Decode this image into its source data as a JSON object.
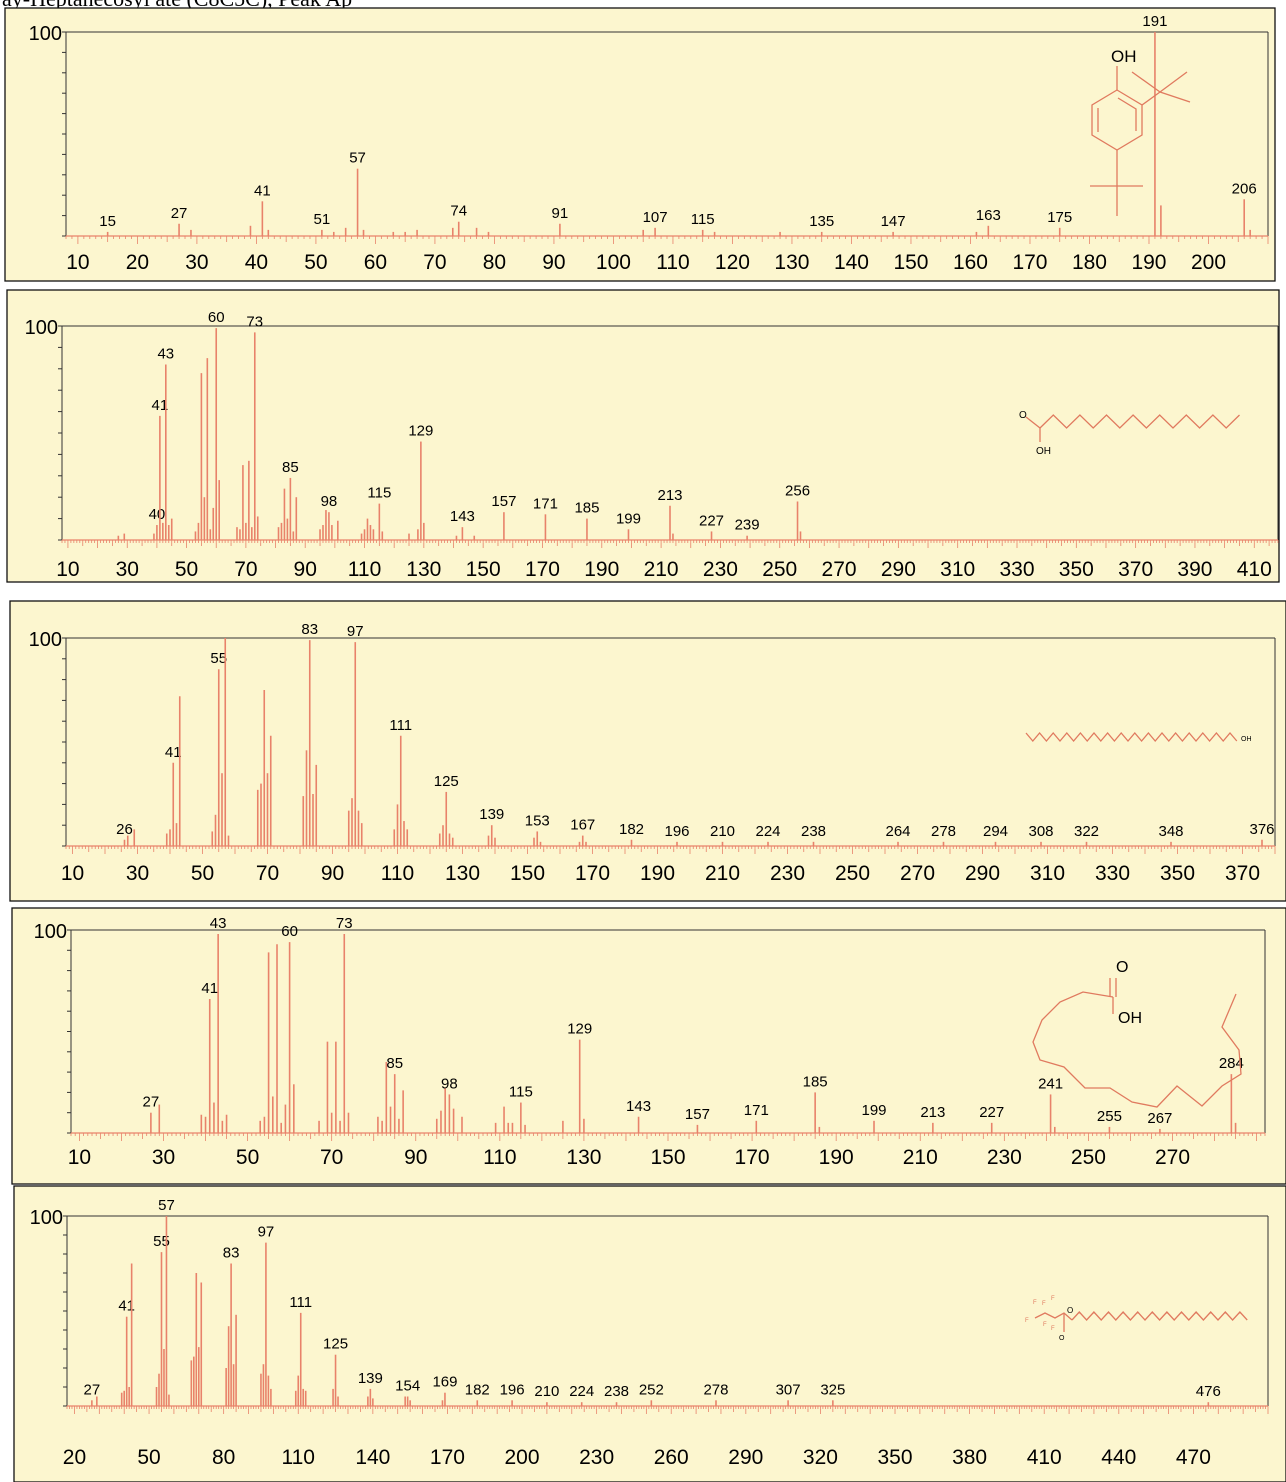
{
  "header": {
    "title": "ay-Heptanecosyl ate (C8C5C), Peak Ap"
  },
  "style": {
    "panel_bg": "#fcf6cf",
    "stick_color": "#e8826a",
    "axis_color": "#333333",
    "structure_color": "#e07a5f"
  },
  "chart_data": [
    {
      "type": "bar",
      "structure": "2,4-di-tert-butylphenol",
      "ylim": [
        0,
        100
      ],
      "y_tick_label": "100",
      "xlim": [
        8,
        210
      ],
      "xtick_labels": [
        10,
        20,
        30,
        40,
        50,
        60,
        70,
        80,
        90,
        100,
        110,
        120,
        130,
        140,
        150,
        160,
        170,
        180,
        190,
        200
      ],
      "structure_label": "OH",
      "peaks": [
        [
          15,
          2,
          "15"
        ],
        [
          27,
          6,
          "27"
        ],
        [
          29,
          3
        ],
        [
          39,
          5
        ],
        [
          41,
          17,
          "41"
        ],
        [
          42,
          3
        ],
        [
          51,
          3,
          "51"
        ],
        [
          53,
          2
        ],
        [
          55,
          4
        ],
        [
          57,
          33,
          "57"
        ],
        [
          58,
          3
        ],
        [
          63,
          2
        ],
        [
          65,
          2
        ],
        [
          67,
          3
        ],
        [
          73,
          4
        ],
        [
          74,
          7,
          "74"
        ],
        [
          77,
          4
        ],
        [
          79,
          2
        ],
        [
          91,
          6,
          "91"
        ],
        [
          105,
          3
        ],
        [
          107,
          4,
          "107"
        ],
        [
          115,
          3,
          "115"
        ],
        [
          117,
          2
        ],
        [
          128,
          2
        ],
        [
          135,
          2,
          "135"
        ],
        [
          147,
          2,
          "147"
        ],
        [
          161,
          2
        ],
        [
          163,
          5,
          "163"
        ],
        [
          175,
          4,
          "175"
        ],
        [
          191,
          100,
          "191"
        ],
        [
          192,
          15
        ],
        [
          206,
          18,
          "206"
        ],
        [
          207,
          3
        ]
      ]
    },
    {
      "type": "bar",
      "structure": "hexadecanoic acid",
      "ylim": [
        0,
        100
      ],
      "y_tick_label": "100",
      "xlim": [
        8,
        418
      ],
      "xtick_labels": [
        10,
        30,
        50,
        70,
        90,
        110,
        130,
        150,
        170,
        190,
        210,
        230,
        250,
        270,
        290,
        310,
        330,
        350,
        370,
        390,
        410
      ],
      "structure_label": "OH",
      "structure_label_2": "O",
      "peaks": [
        [
          27,
          2
        ],
        [
          29,
          3
        ],
        [
          39,
          3
        ],
        [
          40,
          7,
          "40"
        ],
        [
          41,
          58,
          "41"
        ],
        [
          42,
          8
        ],
        [
          43,
          82,
          "43"
        ],
        [
          44,
          7
        ],
        [
          45,
          10
        ],
        [
          53,
          4
        ],
        [
          54,
          8
        ],
        [
          55,
          78
        ],
        [
          56,
          20
        ],
        [
          57,
          85
        ],
        [
          58,
          5
        ],
        [
          59,
          15
        ],
        [
          60,
          99,
          "60"
        ],
        [
          61,
          28
        ],
        [
          67,
          6
        ],
        [
          68,
          5
        ],
        [
          69,
          35
        ],
        [
          70,
          8
        ],
        [
          71,
          37
        ],
        [
          72,
          6
        ],
        [
          73,
          97,
          "73"
        ],
        [
          74,
          11
        ],
        [
          81,
          6
        ],
        [
          82,
          8
        ],
        [
          83,
          24
        ],
        [
          84,
          10
        ],
        [
          85,
          29,
          "85"
        ],
        [
          86,
          4
        ],
        [
          87,
          20
        ],
        [
          95,
          5
        ],
        [
          96,
          7
        ],
        [
          97,
          14
        ],
        [
          98,
          13,
          "98"
        ],
        [
          99,
          7
        ],
        [
          101,
          9
        ],
        [
          109,
          3
        ],
        [
          110,
          5
        ],
        [
          111,
          10
        ],
        [
          112,
          7
        ],
        [
          113,
          5
        ],
        [
          115,
          17,
          "115"
        ],
        [
          116,
          4
        ],
        [
          125,
          3
        ],
        [
          128,
          5
        ],
        [
          129,
          46,
          "129"
        ],
        [
          130,
          8
        ],
        [
          141,
          2
        ],
        [
          143,
          6,
          "143"
        ],
        [
          147,
          2
        ],
        [
          157,
          13,
          "157"
        ],
        [
          171,
          12,
          "171"
        ],
        [
          185,
          10,
          "185"
        ],
        [
          199,
          5,
          "199"
        ],
        [
          213,
          16,
          "213"
        ],
        [
          214,
          3
        ],
        [
          227,
          4,
          "227"
        ],
        [
          239,
          2,
          "239"
        ],
        [
          256,
          18,
          "256"
        ],
        [
          257,
          4
        ]
      ]
    },
    {
      "type": "bar",
      "structure": "hexacosanol",
      "ylim": [
        0,
        100
      ],
      "y_tick_label": "100",
      "xlim": [
        8,
        380
      ],
      "xtick_labels": [
        10,
        30,
        50,
        70,
        90,
        110,
        130,
        150,
        170,
        190,
        210,
        230,
        250,
        270,
        290,
        310,
        330,
        350,
        370
      ],
      "structure_label": "OH",
      "peaks": [
        [
          26,
          3,
          "26"
        ],
        [
          27,
          5
        ],
        [
          29,
          8
        ],
        [
          39,
          6
        ],
        [
          40,
          8
        ],
        [
          41,
          40,
          "41"
        ],
        [
          42,
          11
        ],
        [
          43,
          72
        ],
        [
          53,
          7
        ],
        [
          54,
          15
        ],
        [
          55,
          85,
          "55"
        ],
        [
          56,
          35
        ],
        [
          57,
          100
        ],
        [
          58,
          5
        ],
        [
          67,
          27
        ],
        [
          68,
          30
        ],
        [
          69,
          75
        ],
        [
          70,
          35
        ],
        [
          71,
          53
        ],
        [
          81,
          24
        ],
        [
          82,
          46
        ],
        [
          83,
          99,
          "83"
        ],
        [
          84,
          25
        ],
        [
          85,
          39
        ],
        [
          95,
          17
        ],
        [
          96,
          23
        ],
        [
          97,
          98,
          "97"
        ],
        [
          98,
          17
        ],
        [
          99,
          11
        ],
        [
          109,
          8
        ],
        [
          110,
          20
        ],
        [
          111,
          53,
          "111"
        ],
        [
          112,
          12
        ],
        [
          113,
          8
        ],
        [
          123,
          6
        ],
        [
          124,
          10
        ],
        [
          125,
          26,
          "125"
        ],
        [
          126,
          6
        ],
        [
          127,
          4
        ],
        [
          138,
          5
        ],
        [
          139,
          10,
          "139"
        ],
        [
          140,
          4
        ],
        [
          152,
          4
        ],
        [
          153,
          7,
          "153"
        ],
        [
          154,
          2
        ],
        [
          166,
          2
        ],
        [
          167,
          5,
          "167"
        ],
        [
          168,
          2
        ],
        [
          182,
          3,
          "182"
        ],
        [
          196,
          2,
          "196"
        ],
        [
          210,
          2,
          "210"
        ],
        [
          224,
          2,
          "224"
        ],
        [
          238,
          2,
          "238"
        ],
        [
          264,
          2,
          "264"
        ],
        [
          278,
          2,
          "278"
        ],
        [
          294,
          2,
          "294"
        ],
        [
          308,
          2,
          "308"
        ],
        [
          322,
          2,
          "322"
        ],
        [
          348,
          2,
          "348"
        ],
        [
          376,
          3,
          "376"
        ]
      ]
    },
    {
      "type": "bar",
      "structure": "octadecanoic acid",
      "ylim": [
        0,
        100
      ],
      "y_tick_label": "100",
      "xlim": [
        8,
        292
      ],
      "xtick_labels": [
        10,
        30,
        50,
        70,
        90,
        110,
        130,
        150,
        170,
        190,
        210,
        230,
        250,
        270
      ],
      "structure_label": "OH",
      "structure_label_2": "O",
      "peaks": [
        [
          27,
          10,
          "27"
        ],
        [
          29,
          14
        ],
        [
          39,
          9
        ],
        [
          40,
          8
        ],
        [
          41,
          66,
          "41"
        ],
        [
          42,
          15
        ],
        [
          43,
          98,
          "43"
        ],
        [
          44,
          6
        ],
        [
          45,
          9
        ],
        [
          53,
          6
        ],
        [
          54,
          8
        ],
        [
          55,
          89
        ],
        [
          56,
          18
        ],
        [
          57,
          93
        ],
        [
          58,
          5
        ],
        [
          59,
          14
        ],
        [
          60,
          94,
          "60"
        ],
        [
          61,
          24
        ],
        [
          67,
          6
        ],
        [
          69,
          45
        ],
        [
          70,
          10
        ],
        [
          71,
          45
        ],
        [
          72,
          6
        ],
        [
          73,
          98,
          "73"
        ],
        [
          74,
          10
        ],
        [
          81,
          8
        ],
        [
          82,
          6
        ],
        [
          83,
          35
        ],
        [
          84,
          13
        ],
        [
          85,
          29,
          "85"
        ],
        [
          86,
          7
        ],
        [
          87,
          21
        ],
        [
          95,
          7
        ],
        [
          96,
          11
        ],
        [
          97,
          22
        ],
        [
          98,
          19,
          "98"
        ],
        [
          99,
          12
        ],
        [
          101,
          8
        ],
        [
          109,
          5
        ],
        [
          111,
          13
        ],
        [
          112,
          5
        ],
        [
          113,
          5
        ],
        [
          115,
          15,
          "115"
        ],
        [
          116,
          4
        ],
        [
          125,
          6
        ],
        [
          129,
          46,
          "129"
        ],
        [
          130,
          7
        ],
        [
          143,
          8,
          "143"
        ],
        [
          157,
          4,
          "157"
        ],
        [
          171,
          6,
          "171"
        ],
        [
          185,
          20,
          "185"
        ],
        [
          186,
          3
        ],
        [
          199,
          6,
          "199"
        ],
        [
          213,
          5,
          "213"
        ],
        [
          227,
          5,
          "227"
        ],
        [
          241,
          19,
          "241"
        ],
        [
          242,
          3
        ],
        [
          255,
          3,
          "255"
        ],
        [
          267,
          2,
          "267"
        ],
        [
          284,
          29,
          "284"
        ],
        [
          285,
          5
        ]
      ]
    },
    {
      "type": "bar",
      "structure": "heneicosyl heptafluorobutyrate",
      "ylim": [
        0,
        100
      ],
      "y_tick_label": "100",
      "xlim": [
        17,
        500
      ],
      "xtick_labels": [
        20,
        50,
        80,
        110,
        140,
        170,
        200,
        230,
        260,
        290,
        320,
        350,
        380,
        410,
        440,
        470
      ],
      "structure_label": "O",
      "peaks": [
        [
          27,
          3,
          "27"
        ],
        [
          29,
          5
        ],
        [
          39,
          7
        ],
        [
          40,
          8
        ],
        [
          41,
          47,
          "41"
        ],
        [
          42,
          10
        ],
        [
          43,
          75
        ],
        [
          53,
          10
        ],
        [
          54,
          17
        ],
        [
          55,
          81,
          "55"
        ],
        [
          56,
          30
        ],
        [
          57,
          100,
          "57"
        ],
        [
          58,
          6
        ],
        [
          67,
          24
        ],
        [
          68,
          26
        ],
        [
          69,
          70
        ],
        [
          70,
          31
        ],
        [
          71,
          65
        ],
        [
          81,
          20
        ],
        [
          82,
          42
        ],
        [
          83,
          75,
          "83"
        ],
        [
          84,
          22
        ],
        [
          85,
          48
        ],
        [
          95,
          17
        ],
        [
          96,
          22
        ],
        [
          97,
          86,
          "97"
        ],
        [
          98,
          16
        ],
        [
          99,
          9
        ],
        [
          109,
          8
        ],
        [
          110,
          16
        ],
        [
          111,
          49,
          "111"
        ],
        [
          112,
          9
        ],
        [
          113,
          8
        ],
        [
          124,
          9
        ],
        [
          125,
          27,
          "125"
        ],
        [
          126,
          5
        ],
        [
          138,
          5
        ],
        [
          139,
          9,
          "139"
        ],
        [
          140,
          4
        ],
        [
          153,
          5
        ],
        [
          154,
          5,
          "154"
        ],
        [
          155,
          3
        ],
        [
          168,
          3
        ],
        [
          169,
          7,
          "169"
        ],
        [
          182,
          3,
          "182"
        ],
        [
          196,
          3,
          "196"
        ],
        [
          210,
          2,
          "210"
        ],
        [
          224,
          2,
          "224"
        ],
        [
          238,
          2,
          "238"
        ],
        [
          252,
          3,
          "252"
        ],
        [
          278,
          3,
          "278"
        ],
        [
          307,
          3,
          "307"
        ],
        [
          325,
          3,
          "325"
        ],
        [
          476,
          2,
          "476"
        ]
      ]
    }
  ]
}
